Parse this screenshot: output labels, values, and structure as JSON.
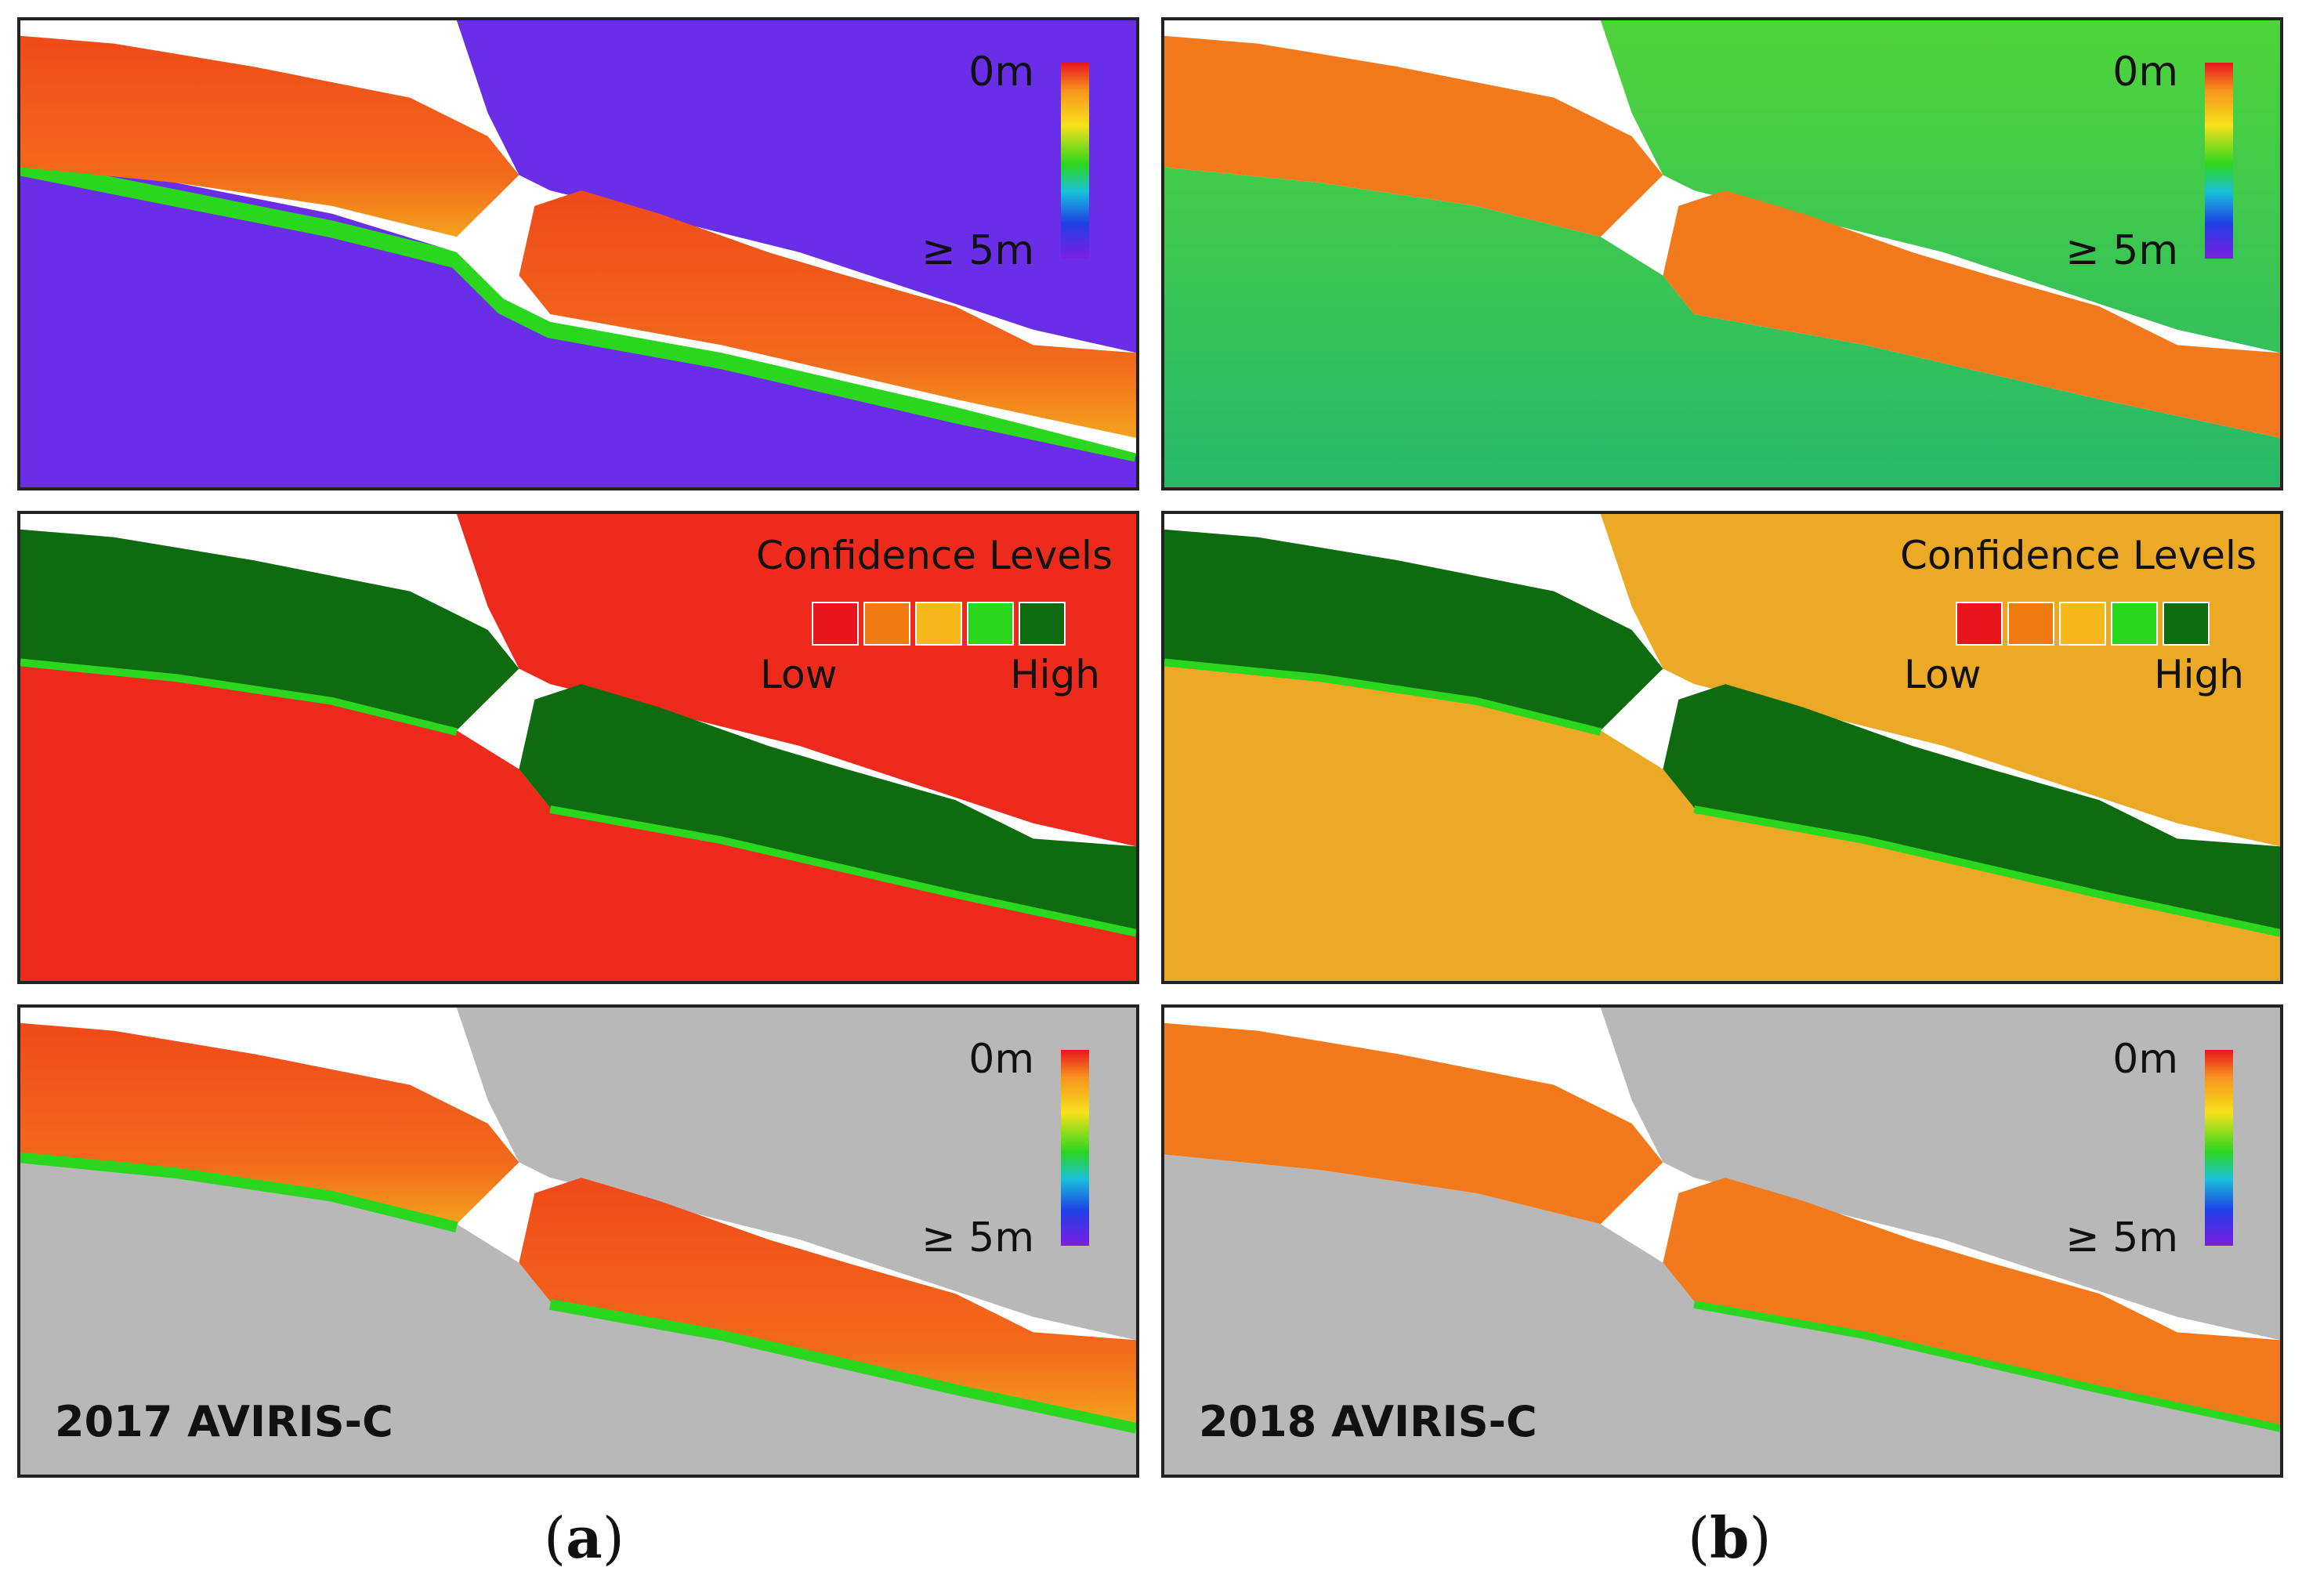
{
  "depth_legend": {
    "top_label": "0m",
    "bottom_label": "≥ 5m"
  },
  "confidence_legend": {
    "title": "Confidence Levels",
    "low_label": "Low",
    "high_label": "High",
    "colors": [
      "#e8141e",
      "#f07a12",
      "#f6b81b",
      "#2bd61e",
      "#0f6b10"
    ]
  },
  "columns": [
    {
      "caption_open": "(",
      "caption_letter": "a",
      "caption_close": ")",
      "year_label": "2017 AVIRIS-C"
    },
    {
      "caption_open": "(",
      "caption_letter": "b",
      "caption_close": ")",
      "year_label": "2018 AVIRIS-C"
    }
  ],
  "colors": {
    "land_red": "#f04a1a",
    "land_orange": "#f7801c",
    "deep_purple": "#6a2ee8",
    "water_green": "#3bd23a",
    "conf_dark_green": "#0f6b10",
    "conf_low_red": "#ee2a1c",
    "conf_mid_orange": "#eba926",
    "masked_gray": "#b8b8b8"
  }
}
